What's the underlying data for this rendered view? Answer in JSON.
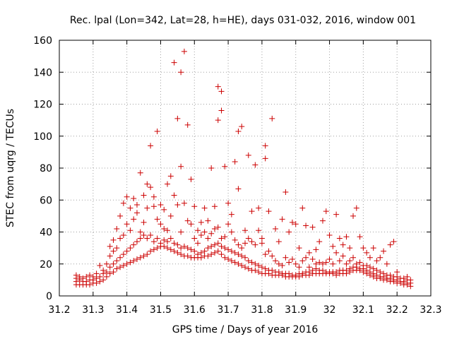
{
  "chart_data": {
    "type": "scatter",
    "title": "Rec. lpal (Lon=342, Lat=28, h=HE), days 031-032, 2016, window 001",
    "xlabel": "GPS time / Days of year 2016",
    "ylabel": "STEC from uqrg / TECUs",
    "xlim": [
      31.2,
      32.3
    ],
    "ylim": [
      0,
      160
    ],
    "xticks": [
      "31.2",
      "31.3",
      "31.4",
      "31.5",
      "31.6",
      "31.7",
      "31.8",
      "31.9",
      "32",
      "32.1",
      "32.2",
      "32.3"
    ],
    "yticks": [
      "0",
      "20",
      "40",
      "60",
      "80",
      "100",
      "120",
      "140",
      "160"
    ],
    "grid": true,
    "marker": "plus",
    "marker_color": "#cc0000",
    "points": [
      [
        31.25,
        7
      ],
      [
        31.25,
        9
      ],
      [
        31.25,
        11
      ],
      [
        31.25,
        13
      ],
      [
        31.26,
        7
      ],
      [
        31.26,
        10
      ],
      [
        31.26,
        12
      ],
      [
        31.27,
        7
      ],
      [
        31.27,
        9
      ],
      [
        31.27,
        11
      ],
      [
        31.28,
        7
      ],
      [
        31.28,
        9
      ],
      [
        31.28,
        12
      ],
      [
        31.29,
        7
      ],
      [
        31.29,
        10
      ],
      [
        31.29,
        13
      ],
      [
        31.3,
        8
      ],
      [
        31.3,
        10
      ],
      [
        31.3,
        12
      ],
      [
        31.31,
        8
      ],
      [
        31.31,
        11
      ],
      [
        31.31,
        14
      ],
      [
        31.32,
        9
      ],
      [
        31.32,
        12
      ],
      [
        31.32,
        19
      ],
      [
        31.33,
        10
      ],
      [
        31.33,
        14
      ],
      [
        31.33,
        16
      ],
      [
        31.34,
        12
      ],
      [
        31.34,
        15
      ],
      [
        31.34,
        20
      ],
      [
        31.35,
        14
      ],
      [
        31.35,
        18
      ],
      [
        31.35,
        25
      ],
      [
        31.35,
        31
      ],
      [
        31.36,
        15
      ],
      [
        31.36,
        20
      ],
      [
        31.36,
        28
      ],
      [
        31.36,
        35
      ],
      [
        31.37,
        17
      ],
      [
        31.37,
        22
      ],
      [
        31.37,
        30
      ],
      [
        31.37,
        42
      ],
      [
        31.38,
        18
      ],
      [
        31.38,
        24
      ],
      [
        31.38,
        36
      ],
      [
        31.38,
        50
      ],
      [
        31.39,
        19
      ],
      [
        31.39,
        26
      ],
      [
        31.39,
        38
      ],
      [
        31.39,
        58
      ],
      [
        31.4,
        20
      ],
      [
        31.4,
        28
      ],
      [
        31.4,
        45
      ],
      [
        31.4,
        62
      ],
      [
        31.41,
        21
      ],
      [
        31.41,
        30
      ],
      [
        31.41,
        41
      ],
      [
        31.41,
        55
      ],
      [
        31.42,
        22
      ],
      [
        31.42,
        32
      ],
      [
        31.42,
        48
      ],
      [
        31.42,
        61
      ],
      [
        31.43,
        23
      ],
      [
        31.43,
        34
      ],
      [
        31.43,
        52
      ],
      [
        31.43,
        57
      ],
      [
        31.44,
        24
      ],
      [
        31.44,
        36
      ],
      [
        31.44,
        40
      ],
      [
        31.44,
        77
      ],
      [
        31.45,
        25
      ],
      [
        31.45,
        38
      ],
      [
        31.45,
        46
      ],
      [
        31.45,
        63
      ],
      [
        31.46,
        26
      ],
      [
        31.46,
        36
      ],
      [
        31.46,
        55
      ],
      [
        31.46,
        70
      ],
      [
        31.47,
        28
      ],
      [
        31.47,
        38
      ],
      [
        31.47,
        68
      ],
      [
        31.47,
        94
      ],
      [
        31.48,
        29
      ],
      [
        31.48,
        34
      ],
      [
        31.48,
        56
      ],
      [
        31.48,
        62
      ],
      [
        31.49,
        30
      ],
      [
        31.49,
        36
      ],
      [
        31.49,
        48
      ],
      [
        31.49,
        103
      ],
      [
        31.5,
        31
      ],
      [
        31.5,
        33
      ],
      [
        31.5,
        45
      ],
      [
        31.5,
        57
      ],
      [
        31.51,
        31
      ],
      [
        31.51,
        35
      ],
      [
        31.51,
        42
      ],
      [
        31.51,
        54
      ],
      [
        31.52,
        30
      ],
      [
        31.52,
        34
      ],
      [
        31.52,
        41
      ],
      [
        31.52,
        70
      ],
      [
        31.53,
        29
      ],
      [
        31.53,
        36
      ],
      [
        31.53,
        50
      ],
      [
        31.53,
        75
      ],
      [
        31.54,
        28
      ],
      [
        31.54,
        33
      ],
      [
        31.54,
        63
      ],
      [
        31.54,
        146
      ],
      [
        31.55,
        27
      ],
      [
        31.55,
        32
      ],
      [
        31.55,
        57
      ],
      [
        31.55,
        111
      ],
      [
        31.56,
        26
      ],
      [
        31.56,
        30
      ],
      [
        31.56,
        40
      ],
      [
        31.56,
        81
      ],
      [
        31.56,
        140
      ],
      [
        31.57,
        25
      ],
      [
        31.57,
        31
      ],
      [
        31.57,
        58
      ],
      [
        31.57,
        153
      ],
      [
        31.58,
        25
      ],
      [
        31.58,
        30
      ],
      [
        31.58,
        47
      ],
      [
        31.58,
        107
      ],
      [
        31.59,
        24
      ],
      [
        31.59,
        29
      ],
      [
        31.59,
        45
      ],
      [
        31.59,
        73
      ],
      [
        31.6,
        24
      ],
      [
        31.6,
        28
      ],
      [
        31.6,
        36
      ],
      [
        31.6,
        56
      ],
      [
        31.61,
        24
      ],
      [
        31.61,
        26
      ],
      [
        31.61,
        33
      ],
      [
        31.61,
        41
      ],
      [
        31.62,
        24
      ],
      [
        31.62,
        27
      ],
      [
        31.62,
        38
      ],
      [
        31.62,
        46
      ],
      [
        31.63,
        25
      ],
      [
        31.63,
        28
      ],
      [
        31.63,
        40
      ],
      [
        31.63,
        55
      ],
      [
        31.64,
        25
      ],
      [
        31.64,
        30
      ],
      [
        31.64,
        36
      ],
      [
        31.64,
        47
      ],
      [
        31.65,
        26
      ],
      [
        31.65,
        31
      ],
      [
        31.65,
        39
      ],
      [
        31.65,
        80
      ],
      [
        31.66,
        27
      ],
      [
        31.66,
        32
      ],
      [
        31.66,
        42
      ],
      [
        31.66,
        56
      ],
      [
        31.67,
        28
      ],
      [
        31.67,
        33
      ],
      [
        31.67,
        43
      ],
      [
        31.67,
        110
      ],
      [
        31.67,
        131
      ],
      [
        31.68,
        26
      ],
      [
        31.68,
        31
      ],
      [
        31.68,
        36
      ],
      [
        31.68,
        116
      ],
      [
        31.68,
        128
      ],
      [
        31.69,
        24
      ],
      [
        31.69,
        30
      ],
      [
        31.69,
        37
      ],
      [
        31.69,
        81
      ],
      [
        31.7,
        23
      ],
      [
        31.7,
        29
      ],
      [
        31.7,
        45
      ],
      [
        31.7,
        58
      ],
      [
        31.71,
        22
      ],
      [
        31.71,
        28
      ],
      [
        31.71,
        40
      ],
      [
        31.71,
        51
      ],
      [
        31.72,
        21
      ],
      [
        31.72,
        27
      ],
      [
        31.72,
        35
      ],
      [
        31.72,
        84
      ],
      [
        31.73,
        20
      ],
      [
        31.73,
        26
      ],
      [
        31.73,
        32
      ],
      [
        31.73,
        67
      ],
      [
        31.73,
        103
      ],
      [
        31.74,
        19
      ],
      [
        31.74,
        25
      ],
      [
        31.74,
        30
      ],
      [
        31.74,
        106
      ],
      [
        31.75,
        18
      ],
      [
        31.75,
        24
      ],
      [
        31.75,
        33
      ],
      [
        31.75,
        41
      ],
      [
        31.76,
        17
      ],
      [
        31.76,
        22
      ],
      [
        31.76,
        36
      ],
      [
        31.76,
        88
      ],
      [
        31.77,
        16
      ],
      [
        31.77,
        21
      ],
      [
        31.77,
        34
      ],
      [
        31.77,
        53
      ],
      [
        31.78,
        16
      ],
      [
        31.78,
        20
      ],
      [
        31.78,
        32
      ],
      [
        31.78,
        82
      ],
      [
        31.79,
        15
      ],
      [
        31.79,
        19
      ],
      [
        31.79,
        41
      ],
      [
        31.79,
        55
      ],
      [
        31.8,
        14
      ],
      [
        31.8,
        18
      ],
      [
        31.8,
        33
      ],
      [
        31.8,
        36
      ],
      [
        31.81,
        14
      ],
      [
        31.81,
        17
      ],
      [
        31.81,
        26
      ],
      [
        31.81,
        86
      ],
      [
        31.81,
        94
      ],
      [
        31.82,
        14
      ],
      [
        31.82,
        16
      ],
      [
        31.82,
        28
      ],
      [
        31.82,
        53
      ],
      [
        31.83,
        13
      ],
      [
        31.83,
        16
      ],
      [
        31.83,
        25
      ],
      [
        31.83,
        111
      ],
      [
        31.84,
        13
      ],
      [
        31.84,
        15
      ],
      [
        31.84,
        22
      ],
      [
        31.84,
        42
      ],
      [
        31.85,
        13
      ],
      [
        31.85,
        15
      ],
      [
        31.85,
        20
      ],
      [
        31.85,
        34
      ],
      [
        31.86,
        13
      ],
      [
        31.86,
        14
      ],
      [
        31.86,
        19
      ],
      [
        31.86,
        48
      ],
      [
        31.87,
        12
      ],
      [
        31.87,
        14
      ],
      [
        31.87,
        24
      ],
      [
        31.87,
        65
      ],
      [
        31.88,
        12
      ],
      [
        31.88,
        14
      ],
      [
        31.88,
        21
      ],
      [
        31.88,
        40
      ],
      [
        31.89,
        12
      ],
      [
        31.89,
        13
      ],
      [
        31.89,
        23
      ],
      [
        31.89,
        46
      ],
      [
        31.9,
        12
      ],
      [
        31.9,
        13
      ],
      [
        31.9,
        20
      ],
      [
        31.9,
        45
      ],
      [
        31.91,
        12
      ],
      [
        31.91,
        14
      ],
      [
        31.91,
        18
      ],
      [
        31.91,
        30
      ],
      [
        31.92,
        13
      ],
      [
        31.92,
        14
      ],
      [
        31.92,
        22
      ],
      [
        31.92,
        55
      ],
      [
        31.93,
        13
      ],
      [
        31.93,
        15
      ],
      [
        31.93,
        24
      ],
      [
        31.93,
        44
      ],
      [
        31.94,
        13
      ],
      [
        31.94,
        15
      ],
      [
        31.94,
        18
      ],
      [
        31.94,
        27
      ],
      [
        31.95,
        14
      ],
      [
        31.95,
        16
      ],
      [
        31.95,
        23
      ],
      [
        31.95,
        43
      ],
      [
        31.96,
        14
      ],
      [
        31.96,
        17
      ],
      [
        31.96,
        20
      ],
      [
        31.96,
        29
      ],
      [
        31.97,
        14
      ],
      [
        31.97,
        16
      ],
      [
        31.97,
        21
      ],
      [
        31.97,
        34
      ],
      [
        31.98,
        14
      ],
      [
        31.98,
        16
      ],
      [
        31.98,
        20
      ],
      [
        31.98,
        47
      ],
      [
        31.99,
        14
      ],
      [
        31.99,
        15
      ],
      [
        31.99,
        21
      ],
      [
        31.99,
        53
      ],
      [
        32.0,
        14
      ],
      [
        32.0,
        15
      ],
      [
        32.0,
        23
      ],
      [
        32.0,
        38
      ],
      [
        32.01,
        14
      ],
      [
        32.01,
        15
      ],
      [
        32.01,
        20
      ],
      [
        32.01,
        31
      ],
      [
        32.02,
        13
      ],
      [
        32.02,
        15
      ],
      [
        32.02,
        27
      ],
      [
        32.02,
        51
      ],
      [
        32.03,
        14
      ],
      [
        32.03,
        16
      ],
      [
        32.03,
        22
      ],
      [
        32.03,
        36
      ],
      [
        32.04,
        14
      ],
      [
        32.04,
        16
      ],
      [
        32.04,
        25
      ],
      [
        32.04,
        32
      ],
      [
        32.05,
        14
      ],
      [
        32.05,
        16
      ],
      [
        32.05,
        20
      ],
      [
        32.05,
        37
      ],
      [
        32.06,
        15
      ],
      [
        32.06,
        17
      ],
      [
        32.06,
        22
      ],
      [
        32.06,
        30
      ],
      [
        32.07,
        16
      ],
      [
        32.07,
        18
      ],
      [
        32.07,
        24
      ],
      [
        32.07,
        50
      ],
      [
        32.08,
        16
      ],
      [
        32.08,
        18
      ],
      [
        32.08,
        20
      ],
      [
        32.08,
        55
      ],
      [
        32.09,
        16
      ],
      [
        32.09,
        17
      ],
      [
        32.09,
        21
      ],
      [
        32.09,
        37
      ],
      [
        32.1,
        15
      ],
      [
        32.1,
        17
      ],
      [
        32.1,
        19
      ],
      [
        32.1,
        30
      ],
      [
        32.11,
        14
      ],
      [
        32.11,
        16
      ],
      [
        32.11,
        19
      ],
      [
        32.11,
        27
      ],
      [
        32.12,
        13
      ],
      [
        32.12,
        15
      ],
      [
        32.12,
        18
      ],
      [
        32.12,
        24
      ],
      [
        32.13,
        12
      ],
      [
        32.13,
        14
      ],
      [
        32.13,
        17
      ],
      [
        32.13,
        30
      ],
      [
        32.14,
        11
      ],
      [
        32.14,
        13
      ],
      [
        32.14,
        16
      ],
      [
        32.14,
        22
      ],
      [
        32.15,
        11
      ],
      [
        32.15,
        12
      ],
      [
        32.15,
        15
      ],
      [
        32.15,
        24
      ],
      [
        32.16,
        10
      ],
      [
        32.16,
        12
      ],
      [
        32.16,
        14
      ],
      [
        32.16,
        28
      ],
      [
        32.17,
        10
      ],
      [
        32.17,
        11
      ],
      [
        32.17,
        13
      ],
      [
        32.17,
        20
      ],
      [
        32.18,
        9
      ],
      [
        32.18,
        11
      ],
      [
        32.18,
        13
      ],
      [
        32.18,
        32
      ],
      [
        32.19,
        9
      ],
      [
        32.19,
        10
      ],
      [
        32.19,
        12
      ],
      [
        32.19,
        34
      ],
      [
        32.2,
        8
      ],
      [
        32.2,
        10
      ],
      [
        32.2,
        12
      ],
      [
        32.2,
        15
      ],
      [
        32.21,
        8
      ],
      [
        32.21,
        9
      ],
      [
        32.21,
        11
      ],
      [
        32.22,
        7
      ],
      [
        32.22,
        9
      ],
      [
        32.22,
        11
      ],
      [
        32.23,
        7
      ],
      [
        32.23,
        8
      ],
      [
        32.23,
        10
      ],
      [
        32.23,
        12
      ],
      [
        32.24,
        6
      ],
      [
        32.24,
        8
      ],
      [
        32.24,
        10
      ]
    ]
  }
}
